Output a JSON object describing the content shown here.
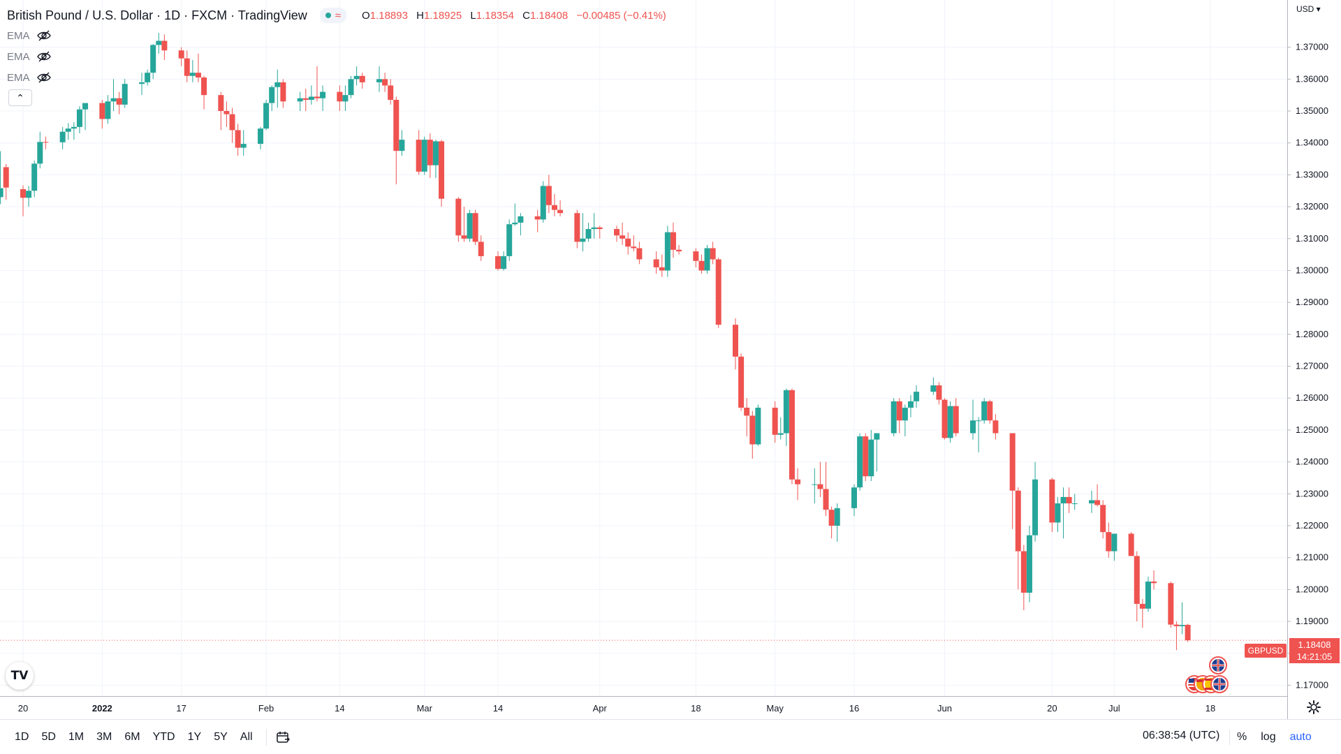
{
  "header": {
    "symbol_title": "British Pound / U.S. Dollar · 1D · FXCM · TradingView",
    "ohlc": [
      {
        "k": "O",
        "v": "1.18893"
      },
      {
        "k": "H",
        "v": "1.18925"
      },
      {
        "k": "L",
        "v": "1.18354"
      },
      {
        "k": "C",
        "v": "1.18408"
      }
    ],
    "change": "−0.00485 (−0.41%)"
  },
  "indicators": [
    {
      "label": "EMA",
      "icon": "eye-off-icon"
    },
    {
      "label": "EMA",
      "icon": "eye-off-icon"
    },
    {
      "label": "EMA",
      "icon": "eye-off-icon"
    }
  ],
  "collapse_glyph": "⌃",
  "logo_text": "TV",
  "currency_select": "USD ▾",
  "symbol_badge": "GBPUSD",
  "price_badge": {
    "price": "1.18408",
    "countdown": "14:21:05"
  },
  "bottom": {
    "ranges": [
      "1D",
      "5D",
      "1M",
      "3M",
      "6M",
      "YTD",
      "1Y",
      "5Y",
      "All"
    ],
    "clock": "06:38:54 (UTC)",
    "options": [
      {
        "label": "%",
        "accent": false
      },
      {
        "label": "log",
        "accent": false
      },
      {
        "label": "auto",
        "accent": true
      }
    ]
  },
  "colors": {
    "up": "#26a69a",
    "down": "#ef5350",
    "grid": "#f0f3fa",
    "axis_text": "#131722",
    "accent": "#2962ff"
  },
  "chart_data": {
    "type": "candlestick",
    "title": "British Pound / U.S. Dollar · 1D · FXCM",
    "ylim": [
      1.1666,
      1.3848
    ],
    "y_ticks": [
      "1.37000",
      "1.36000",
      "1.35000",
      "1.34000",
      "1.33000",
      "1.32000",
      "1.31000",
      "1.30000",
      "1.29000",
      "1.28000",
      "1.27000",
      "1.26000",
      "1.25000",
      "1.24000",
      "1.23000",
      "1.22000",
      "1.21000",
      "1.20000",
      "1.19000",
      "1.18000",
      "1.17000"
    ],
    "x_ticks": [
      {
        "label": "20",
        "date": "2021-12-20"
      },
      {
        "label": "2022",
        "date": "2022-01-03",
        "bold": true
      },
      {
        "label": "17",
        "date": "2022-01-17"
      },
      {
        "label": "Feb",
        "date": "2022-02-01"
      },
      {
        "label": "14",
        "date": "2022-02-14"
      },
      {
        "label": "Mar",
        "date": "2022-03-01"
      },
      {
        "label": "14",
        "date": "2022-03-14"
      },
      {
        "label": "Apr",
        "date": "2022-04-01"
      },
      {
        "label": "18",
        "date": "2022-04-18"
      },
      {
        "label": "May",
        "date": "2022-05-02"
      },
      {
        "label": "16",
        "date": "2022-05-16"
      },
      {
        "label": "Jun",
        "date": "2022-06-01"
      },
      {
        "label": "20",
        "date": "2022-06-20"
      },
      {
        "label": "Jul",
        "date": "2022-07-01"
      },
      {
        "label": "18",
        "date": "2022-07-18"
      }
    ],
    "candles": [
      [
        "2021-12-16",
        1.323,
        1.3374,
        1.3208,
        1.3258
      ],
      [
        "2021-12-17",
        1.3324,
        1.3334,
        1.3222,
        1.326
      ],
      [
        "2021-12-20",
        1.3255,
        1.3267,
        1.317,
        1.3228
      ],
      [
        "2021-12-21",
        1.3228,
        1.3265,
        1.32,
        1.325
      ],
      [
        "2021-12-22",
        1.325,
        1.3345,
        1.323,
        1.3335
      ],
      [
        "2021-12-23",
        1.3335,
        1.3435,
        1.332,
        1.3403
      ],
      [
        "2021-12-24",
        1.3403,
        1.342,
        1.338,
        1.3402
      ],
      [
        "2021-12-27",
        1.3402,
        1.345,
        1.338,
        1.3435
      ],
      [
        "2021-12-28",
        1.3435,
        1.3462,
        1.341,
        1.3445
      ],
      [
        "2021-12-29",
        1.3445,
        1.3465,
        1.341,
        1.345
      ],
      [
        "2021-12-30",
        1.345,
        1.3515,
        1.343,
        1.3505
      ],
      [
        "2021-12-31",
        1.3505,
        1.3525,
        1.344,
        1.3525
      ],
      [
        "2022-01-03",
        1.3525,
        1.3535,
        1.3445,
        1.3475
      ],
      [
        "2022-01-04",
        1.3475,
        1.355,
        1.346,
        1.353
      ],
      [
        "2022-01-05",
        1.353,
        1.36,
        1.35,
        1.354
      ],
      [
        "2022-01-06",
        1.354,
        1.356,
        1.349,
        1.352
      ],
      [
        "2022-01-07",
        1.352,
        1.36,
        1.351,
        1.3585
      ],
      [
        "2022-01-10",
        1.3585,
        1.362,
        1.355,
        1.359
      ],
      [
        "2022-01-11",
        1.359,
        1.363,
        1.358,
        1.362
      ],
      [
        "2022-01-12",
        1.362,
        1.371,
        1.36,
        1.3707
      ],
      [
        "2022-01-13",
        1.3707,
        1.3745,
        1.368,
        1.372
      ],
      [
        "2022-01-14",
        1.372,
        1.374,
        1.366,
        1.369
      ],
      [
        "2022-01-17",
        1.369,
        1.37,
        1.364,
        1.3665
      ],
      [
        "2022-01-18",
        1.3665,
        1.369,
        1.359,
        1.361
      ],
      [
        "2022-01-19",
        1.361,
        1.366,
        1.359,
        1.362
      ],
      [
        "2022-01-20",
        1.362,
        1.368,
        1.359,
        1.3605
      ],
      [
        "2022-01-21",
        1.3605,
        1.361,
        1.3505,
        1.355
      ],
      [
        "2022-01-24",
        1.355,
        1.356,
        1.344,
        1.35
      ],
      [
        "2022-01-25",
        1.35,
        1.353,
        1.345,
        1.349
      ],
      [
        "2022-01-26",
        1.349,
        1.351,
        1.34,
        1.344
      ],
      [
        "2022-01-27",
        1.344,
        1.346,
        1.336,
        1.3385
      ],
      [
        "2022-01-28",
        1.3385,
        1.344,
        1.336,
        1.3397
      ],
      [
        "2022-01-31",
        1.3397,
        1.345,
        1.338,
        1.3445
      ],
      [
        "2022-02-01",
        1.3445,
        1.3535,
        1.344,
        1.3525
      ],
      [
        "2022-02-02",
        1.3525,
        1.358,
        1.35,
        1.3575
      ],
      [
        "2022-02-03",
        1.3575,
        1.363,
        1.351,
        1.359
      ],
      [
        "2022-02-04",
        1.359,
        1.36,
        1.351,
        1.353
      ],
      [
        "2022-02-07",
        1.353,
        1.356,
        1.35,
        1.354
      ],
      [
        "2022-02-08",
        1.354,
        1.357,
        1.35,
        1.3535
      ],
      [
        "2022-02-09",
        1.3535,
        1.358,
        1.352,
        1.3545
      ],
      [
        "2022-02-10",
        1.3545,
        1.364,
        1.353,
        1.354
      ],
      [
        "2022-02-11",
        1.354,
        1.358,
        1.35,
        1.356
      ],
      [
        "2022-02-14",
        1.356,
        1.358,
        1.35,
        1.353
      ],
      [
        "2022-02-15",
        1.353,
        1.358,
        1.35,
        1.355
      ],
      [
        "2022-02-16",
        1.355,
        1.361,
        1.354,
        1.36
      ],
      [
        "2022-02-17",
        1.36,
        1.364,
        1.358,
        1.361
      ],
      [
        "2022-02-18",
        1.361,
        1.362,
        1.357,
        1.359
      ],
      [
        "2022-02-21",
        1.359,
        1.364,
        1.356,
        1.36
      ],
      [
        "2022-02-22",
        1.36,
        1.362,
        1.356,
        1.358
      ],
      [
        "2022-02-23",
        1.358,
        1.36,
        1.352,
        1.3535
      ],
      [
        "2022-02-24",
        1.3535,
        1.3545,
        1.327,
        1.3375
      ],
      [
        "2022-02-25",
        1.3375,
        1.344,
        1.336,
        1.341
      ],
      [
        "2022-02-28",
        1.341,
        1.344,
        1.33,
        1.331
      ],
      [
        "2022-03-01",
        1.331,
        1.342,
        1.33,
        1.341
      ],
      [
        "2022-03-02",
        1.341,
        1.343,
        1.329,
        1.333
      ],
      [
        "2022-03-03",
        1.333,
        1.341,
        1.329,
        1.3405
      ],
      [
        "2022-03-04",
        1.3405,
        1.341,
        1.32,
        1.3225
      ],
      [
        "2022-03-07",
        1.3225,
        1.323,
        1.309,
        1.311
      ],
      [
        "2022-03-08",
        1.311,
        1.32,
        1.309,
        1.31
      ],
      [
        "2022-03-09",
        1.31,
        1.319,
        1.309,
        1.318
      ],
      [
        "2022-03-10",
        1.318,
        1.319,
        1.308,
        1.309
      ],
      [
        "2022-03-11",
        1.309,
        1.311,
        1.303,
        1.3045
      ],
      [
        "2022-03-14",
        1.3045,
        1.306,
        1.3,
        1.3005
      ],
      [
        "2022-03-15",
        1.3005,
        1.306,
        1.3,
        1.3045
      ],
      [
        "2022-03-16",
        1.3045,
        1.316,
        1.303,
        1.3145
      ],
      [
        "2022-03-17",
        1.3145,
        1.321,
        1.314,
        1.315
      ],
      [
        "2022-03-18",
        1.315,
        1.318,
        1.311,
        1.317
      ],
      [
        "2022-03-21",
        1.317,
        1.319,
        1.312,
        1.316
      ],
      [
        "2022-03-22",
        1.316,
        1.328,
        1.315,
        1.3265
      ],
      [
        "2022-03-23",
        1.3265,
        1.33,
        1.318,
        1.3205
      ],
      [
        "2022-03-24",
        1.3205,
        1.324,
        1.317,
        1.319
      ],
      [
        "2022-03-25",
        1.319,
        1.322,
        1.317,
        1.318
      ],
      [
        "2022-03-28",
        1.318,
        1.319,
        1.307,
        1.309
      ],
      [
        "2022-03-29",
        1.309,
        1.318,
        1.306,
        1.31
      ],
      [
        "2022-03-30",
        1.31,
        1.315,
        1.309,
        1.313
      ],
      [
        "2022-03-31",
        1.313,
        1.318,
        1.31,
        1.3135
      ],
      [
        "2022-04-01",
        1.3135,
        1.314,
        1.31,
        1.313
      ],
      [
        "2022-04-04",
        1.313,
        1.314,
        1.309,
        1.311
      ],
      [
        "2022-04-05",
        1.311,
        1.315,
        1.308,
        1.31
      ],
      [
        "2022-04-06",
        1.31,
        1.312,
        1.305,
        1.3075
      ],
      [
        "2022-04-07",
        1.3075,
        1.311,
        1.306,
        1.307
      ],
      [
        "2022-04-08",
        1.307,
        1.309,
        1.302,
        1.3035
      ],
      [
        "2022-04-11",
        1.3035,
        1.306,
        1.299,
        1.301
      ],
      [
        "2022-04-12",
        1.301,
        1.305,
        1.298,
        1.3
      ],
      [
        "2022-04-13",
        1.3,
        1.314,
        1.298,
        1.312
      ],
      [
        "2022-04-14",
        1.312,
        1.315,
        1.304,
        1.3065
      ],
      [
        "2022-04-15",
        1.3065,
        1.308,
        1.305,
        1.306
      ],
      [
        "2022-04-18",
        1.306,
        1.307,
        1.301,
        1.303
      ],
      [
        "2022-04-19",
        1.303,
        1.305,
        1.299,
        1.3
      ],
      [
        "2022-04-20",
        1.3,
        1.308,
        1.299,
        1.307
      ],
      [
        "2022-04-21",
        1.307,
        1.309,
        1.302,
        1.3035
      ],
      [
        "2022-04-22",
        1.3035,
        1.304,
        1.282,
        1.283
      ],
      [
        "2022-04-25",
        1.283,
        1.285,
        1.269,
        1.273
      ],
      [
        "2022-04-26",
        1.273,
        1.274,
        1.256,
        1.257
      ],
      [
        "2022-04-27",
        1.257,
        1.26,
        1.248,
        1.2545
      ],
      [
        "2022-04-28",
        1.2545,
        1.256,
        1.241,
        1.2455
      ],
      [
        "2022-04-29",
        1.2455,
        1.258,
        1.245,
        1.257
      ],
      [
        "2022-05-02",
        1.257,
        1.259,
        1.246,
        1.2485
      ],
      [
        "2022-05-03",
        1.2485,
        1.254,
        1.247,
        1.249
      ],
      [
        "2022-05-04",
        1.249,
        1.263,
        1.245,
        1.2625
      ],
      [
        "2022-05-05",
        1.2625,
        1.263,
        1.233,
        1.2345
      ],
      [
        "2022-05-06",
        1.2345,
        1.238,
        1.228,
        1.233
      ],
      [
        "2022-05-09",
        1.233,
        1.238,
        1.227,
        1.233
      ],
      [
        "2022-05-10",
        1.233,
        1.24,
        1.229,
        1.2315
      ],
      [
        "2022-05-11",
        1.2315,
        1.24,
        1.223,
        1.225
      ],
      [
        "2022-05-12",
        1.225,
        1.226,
        1.216,
        1.22
      ],
      [
        "2022-05-13",
        1.22,
        1.227,
        1.215,
        1.2255
      ],
      [
        "2022-05-16",
        1.2255,
        1.233,
        1.223,
        1.232
      ],
      [
        "2022-05-17",
        1.232,
        1.249,
        1.231,
        1.248
      ],
      [
        "2022-05-18",
        1.248,
        1.249,
        1.234,
        1.2355
      ],
      [
        "2022-05-19",
        1.2355,
        1.25,
        1.234,
        1.247
      ],
      [
        "2022-05-20",
        1.247,
        1.248,
        1.237,
        1.249
      ],
      [
        "2022-05-23",
        1.249,
        1.26,
        1.248,
        1.259
      ],
      [
        "2022-05-24",
        1.259,
        1.26,
        1.249,
        1.253
      ],
      [
        "2022-05-25",
        1.253,
        1.258,
        1.248,
        1.257
      ],
      [
        "2022-05-26",
        1.257,
        1.261,
        1.254,
        1.259
      ],
      [
        "2022-05-27",
        1.259,
        1.264,
        1.257,
        1.262
      ],
      [
        "2022-05-30",
        1.262,
        1.2665,
        1.261,
        1.264
      ],
      [
        "2022-05-31",
        1.264,
        1.265,
        1.258,
        1.2595
      ],
      [
        "2022-06-01",
        1.2595,
        1.26,
        1.247,
        1.2475
      ],
      [
        "2022-06-02",
        1.2475,
        1.259,
        1.246,
        1.2575
      ],
      [
        "2022-06-03",
        1.2575,
        1.26,
        1.248,
        1.249
      ],
      [
        "2022-06-06",
        1.249,
        1.2595,
        1.247,
        1.253
      ],
      [
        "2022-06-07",
        1.253,
        1.254,
        1.243,
        1.253
      ],
      [
        "2022-06-08",
        1.253,
        1.26,
        1.252,
        1.259
      ],
      [
        "2022-06-09",
        1.259,
        1.2595,
        1.252,
        1.253
      ],
      [
        "2022-06-10",
        1.253,
        1.255,
        1.247,
        1.249
      ],
      [
        "2022-06-13",
        1.249,
        1.249,
        1.219,
        1.231
      ],
      [
        "2022-06-14",
        1.231,
        1.232,
        1.2,
        1.212
      ],
      [
        "2022-06-15",
        1.212,
        1.214,
        1.1935,
        1.199
      ],
      [
        "2022-06-16",
        1.199,
        1.22,
        1.196,
        1.217
      ],
      [
        "2022-06-17",
        1.217,
        1.24,
        1.215,
        1.2345
      ],
      [
        "2022-06-20",
        1.2345,
        1.235,
        1.218,
        1.221
      ],
      [
        "2022-06-21",
        1.221,
        1.229,
        1.218,
        1.227
      ],
      [
        "2022-06-22",
        1.227,
        1.232,
        1.216,
        1.229
      ],
      [
        "2022-06-23",
        1.229,
        1.232,
        1.224,
        1.227
      ],
      [
        "2022-06-24",
        1.227,
        1.23,
        1.225,
        1.227
      ],
      [
        "2022-06-27",
        1.227,
        1.231,
        1.224,
        1.228
      ],
      [
        "2022-06-28",
        1.228,
        1.233,
        1.226,
        1.2265
      ],
      [
        "2022-06-29",
        1.2265,
        1.228,
        1.216,
        1.218
      ],
      [
        "2022-06-30",
        1.218,
        1.221,
        1.21,
        1.212
      ],
      [
        "2022-07-01",
        1.212,
        1.217,
        1.209,
        1.2175
      ],
      [
        "2022-07-04",
        1.2175,
        1.218,
        1.211,
        1.2105
      ],
      [
        "2022-07-05",
        1.2105,
        1.212,
        1.19,
        1.1955
      ],
      [
        "2022-07-06",
        1.1955,
        1.197,
        1.188,
        1.194
      ],
      [
        "2022-07-07",
        1.194,
        1.204,
        1.193,
        1.2025
      ],
      [
        "2022-07-08",
        1.2025,
        1.206,
        1.2,
        1.202
      ],
      [
        "2022-07-11",
        1.202,
        1.2025,
        1.188,
        1.189
      ],
      [
        "2022-07-12",
        1.189,
        1.19,
        1.181,
        1.1885
      ],
      [
        "2022-07-13",
        1.1885,
        1.196,
        1.186,
        1.1889
      ],
      [
        "2022-07-14",
        1.18893,
        1.18925,
        1.18354,
        1.18408
      ]
    ]
  }
}
